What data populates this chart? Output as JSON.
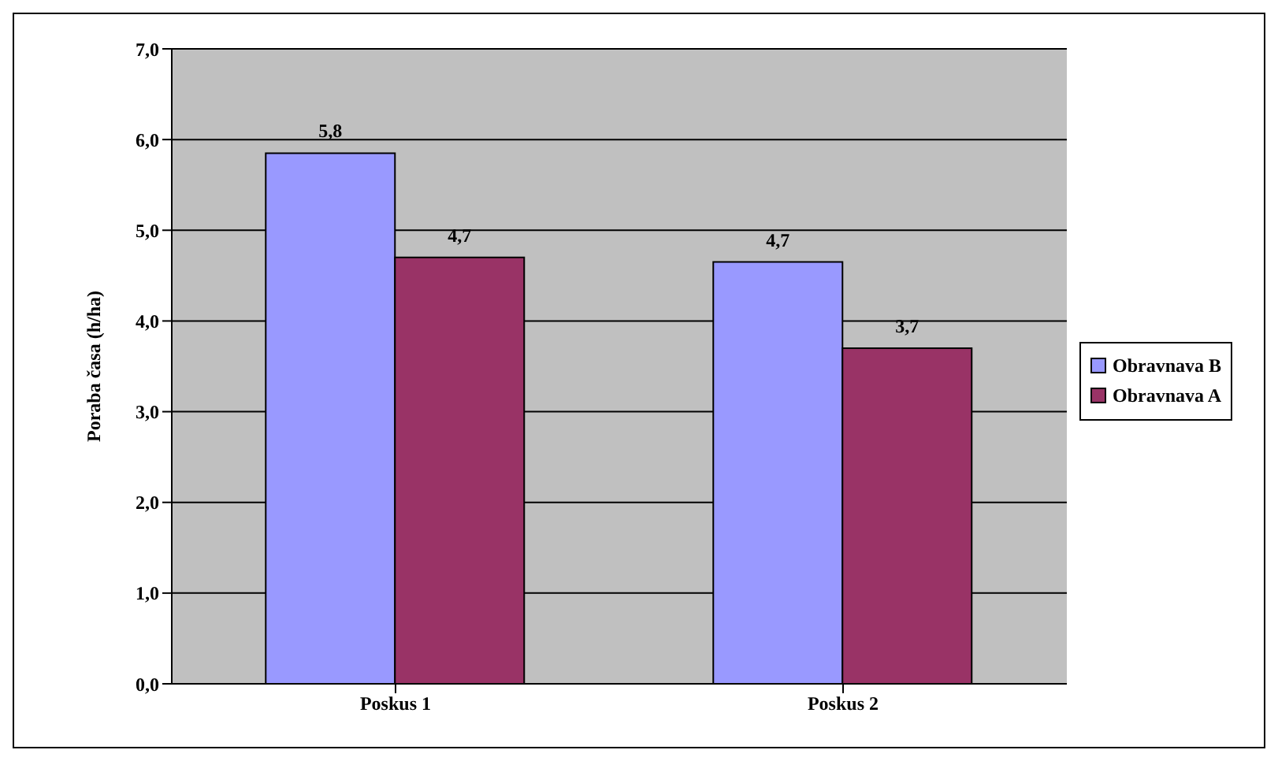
{
  "chart_data": {
    "type": "bar",
    "ylabel": "Poraba časa (h/ha)",
    "categories": [
      "Poskus 1",
      "Poskus 2"
    ],
    "series": [
      {
        "name": "Obravnava B",
        "color": "#9999ff",
        "values": [
          5.85,
          4.65
        ],
        "value_labels": [
          "5,8",
          "4,7"
        ]
      },
      {
        "name": "Obravnava A",
        "color": "#993366",
        "values": [
          4.7,
          3.7
        ],
        "value_labels": [
          "4,7",
          "3,7"
        ]
      }
    ],
    "ylim": [
      0,
      7
    ],
    "yticks": [
      {
        "value": 0,
        "label": "0,0"
      },
      {
        "value": 1,
        "label": "1,0"
      },
      {
        "value": 2,
        "label": "2,0"
      },
      {
        "value": 3,
        "label": "3,0"
      },
      {
        "value": 4,
        "label": "4,0"
      },
      {
        "value": 5,
        "label": "5,0"
      },
      {
        "value": 6,
        "label": "6,0"
      },
      {
        "value": 7,
        "label": "7,0"
      }
    ],
    "grid": "y",
    "legend": "right"
  }
}
